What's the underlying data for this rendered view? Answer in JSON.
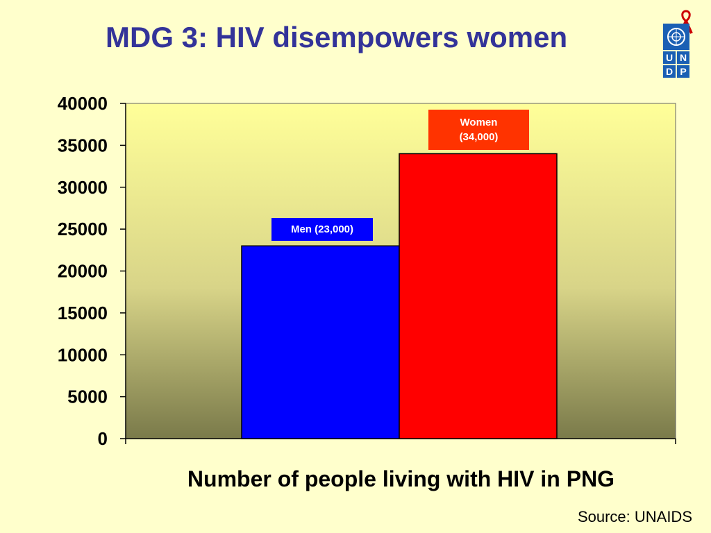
{
  "slide": {
    "title": "MDG 3: HIV disempowers women",
    "source": "Source: UNAIDS"
  },
  "logo": {
    "letters": [
      "U",
      "N",
      "D",
      "P"
    ],
    "emblem": "un-emblem-icon",
    "ribbon": "red-ribbon-icon"
  },
  "colors": {
    "title": "#333399",
    "men": "#0000FF",
    "women": "#FF0000",
    "men_label_bg": "#0000FF",
    "women_label_bg": "#FF3300"
  },
  "chart_data": {
    "type": "bar",
    "title": "",
    "xlabel": "Number of people living with HIV in PNG",
    "ylabel": "",
    "ylim": [
      0,
      40000
    ],
    "yticks": [
      "0",
      "5000",
      "10000",
      "15000",
      "20000",
      "25000",
      "30000",
      "35000",
      "40000"
    ],
    "grid": false,
    "series": [
      {
        "name": "Men",
        "values": [
          23000
        ],
        "data_label": [
          "Men (23,000)"
        ]
      },
      {
        "name": "Women",
        "values": [
          34000
        ],
        "data_label": [
          "Women",
          "(34,000)"
        ]
      }
    ]
  }
}
